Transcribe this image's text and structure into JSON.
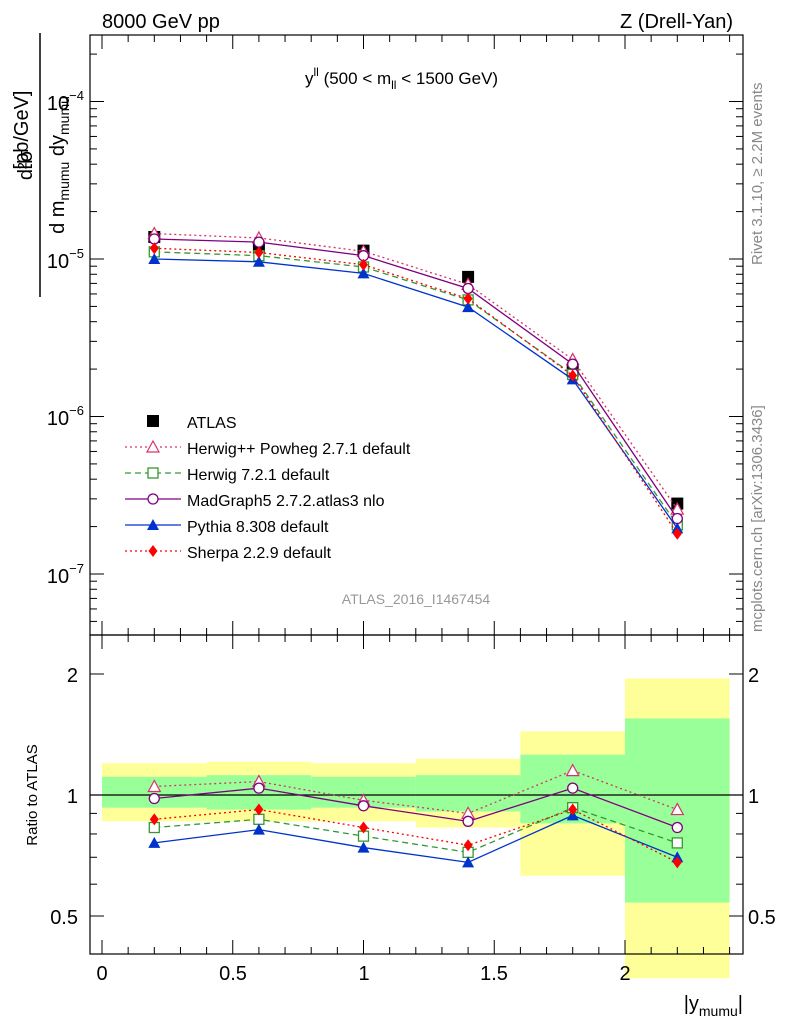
{
  "header": {
    "left": "8000 GeV pp",
    "right": "Z (Drell-Yan)"
  },
  "side_labels": {
    "rivet": "Rivet 3.1.10, ≥ 2.2M events",
    "mcplots": "mcplots.cern.ch [arXiv:1306.3436]"
  },
  "plot_title": {
    "main": "y",
    "main_sup": "ll",
    "range_text_a": " (500 < m",
    "range_sub": "ll",
    "range_text_b": " < 1500 GeV)"
  },
  "watermark": "ATLAS_2016_I1467454",
  "y_axis_upper": {
    "num": "d²σ",
    "den_a": "d m",
    "den_sub_a": "mumu",
    "den_b": " dy",
    "den_sub_b": "mumu",
    "unit": "[pb/GeV]",
    "ticks": [
      {
        "base": "10",
        "exp": "−4"
      },
      {
        "base": "10",
        "exp": "−5"
      },
      {
        "base": "10",
        "exp": "−6"
      },
      {
        "base": "10",
        "exp": "−7"
      }
    ]
  },
  "y_axis_lower": {
    "label": "Ratio to ATLAS",
    "ticks": [
      "2",
      "1",
      "0.5"
    ]
  },
  "x_axis": {
    "label": "|y",
    "label_sub": "mumu",
    "label_end": "|",
    "ticks": [
      "0",
      "0.5",
      "1",
      "1.5",
      "2"
    ]
  },
  "colors": {
    "atlas": "#000000",
    "herwigpp": "#d6336c",
    "herwig7": "#339933",
    "madgraph": "#800080",
    "pythia": "#0033cc",
    "sherpa": "#ff0000",
    "band_inner": "#99ff99",
    "band_outer": "#ffff99"
  },
  "chart_data": {
    "type": "scatter",
    "x_scale": "linear",
    "upper_y_scale": "log",
    "xlim": [
      -0.05,
      2.45
    ],
    "ylim_upper": [
      4e-08,
      0.0003
    ],
    "ylim_lower": [
      0.35,
      2.3
    ],
    "x": [
      0.2,
      0.6,
      1.0,
      1.4,
      1.8,
      2.2
    ],
    "bin_edges": [
      0,
      0.4,
      0.8,
      1.2,
      1.6,
      2.0,
      2.4
    ],
    "series": [
      {
        "name": "ATLAS",
        "marker": "square-filled",
        "color_key": "atlas",
        "values": [
          1.38e-05,
          1.18e-05,
          1.13e-05,
          7.7e-06,
          1.95e-06,
          2.8e-07
        ]
      },
      {
        "name": "Herwig++ Powheg 2.7.1 default",
        "marker": "triangle-open",
        "style": "dotted",
        "color_key": "herwigpp",
        "values": [
          1.45e-05,
          1.36e-05,
          1.12e-05,
          6.9e-06,
          2.3e-06,
          2.58e-07
        ],
        "ratio": [
          1.05,
          1.08,
          0.97,
          0.9,
          1.15,
          0.92
        ]
      },
      {
        "name": "Herwig 7.2.1 default",
        "marker": "square-open",
        "style": "dashed",
        "color_key": "herwig7",
        "values": [
          1.11e-05,
          1.05e-05,
          8.9e-06,
          5.5e-06,
          1.85e-06,
          2.05e-07
        ],
        "ratio": [
          0.83,
          0.87,
          0.79,
          0.72,
          0.93,
          0.76
        ]
      },
      {
        "name": "MadGraph5 2.7.2.atlas3 nlo",
        "marker": "circle-open",
        "style": "solid",
        "color_key": "madgraph",
        "values": [
          1.34e-05,
          1.28e-05,
          1.05e-05,
          6.5e-06,
          2.15e-06,
          2.25e-07
        ],
        "ratio": [
          0.98,
          1.04,
          0.94,
          0.86,
          1.04,
          0.83
        ]
      },
      {
        "name": "Pythia 8.308 default",
        "marker": "triangle-filled",
        "style": "solid",
        "color_key": "pythia",
        "values": [
          1e-05,
          9.6e-06,
          8.1e-06,
          4.95e-06,
          1.72e-06,
          1.95e-07
        ],
        "ratio": [
          0.76,
          0.82,
          0.74,
          0.68,
          0.89,
          0.7
        ]
      },
      {
        "name": "Sherpa 2.2.9 default",
        "marker": "diamond-filled",
        "style": "dotted",
        "color_key": "sherpa",
        "values": [
          1.17e-05,
          1.1e-05,
          9.2e-06,
          5.6e-06,
          1.82e-06,
          1.8e-07
        ],
        "ratio": [
          0.87,
          0.92,
          0.83,
          0.75,
          0.92,
          0.68
        ]
      }
    ],
    "bands": {
      "inner": [
        [
          0.93,
          1.11
        ],
        [
          0.92,
          1.12
        ],
        [
          0.93,
          1.11
        ],
        [
          0.91,
          1.12
        ],
        [
          0.85,
          1.26
        ],
        [
          0.54,
          1.55
        ]
      ],
      "outer": [
        [
          0.86,
          1.2
        ],
        [
          0.86,
          1.21
        ],
        [
          0.86,
          1.2
        ],
        [
          0.83,
          1.23
        ],
        [
          0.63,
          1.44
        ],
        [
          0.35,
          1.95
        ]
      ]
    },
    "legend_position": "lower-left"
  }
}
